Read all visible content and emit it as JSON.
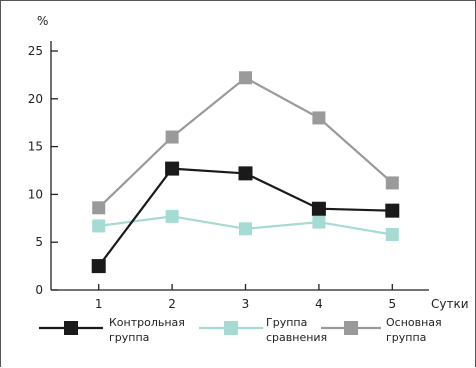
{
  "chart_data": {
    "type": "line",
    "title": "",
    "ylabel": "%",
    "xlabel": "Сутки",
    "x": [
      1,
      2,
      3,
      4,
      5
    ],
    "xlim": [
      0.35,
      5.5
    ],
    "ylim": [
      0,
      25
    ],
    "y_ticks": [
      0,
      5,
      10,
      15,
      20,
      25
    ],
    "x_ticks": [
      1,
      2,
      3,
      4,
      5
    ],
    "grid": false,
    "legend_position": "bottom",
    "series": [
      {
        "name_lines": [
          "Контрольная",
          "группа"
        ],
        "color": "#1a1a1a",
        "values": [
          2.5,
          12.7,
          12.2,
          8.5,
          8.3
        ]
      },
      {
        "name_lines": [
          "Группа",
          "сравнения"
        ],
        "color": "#a6dbd4",
        "values": [
          6.7,
          7.7,
          6.4,
          7.1,
          5.8
        ]
      },
      {
        "name_lines": [
          "Основная",
          "группа"
        ],
        "color": "#9a9a9a",
        "values": [
          8.6,
          16.0,
          22.2,
          18.0,
          11.2
        ]
      }
    ]
  }
}
